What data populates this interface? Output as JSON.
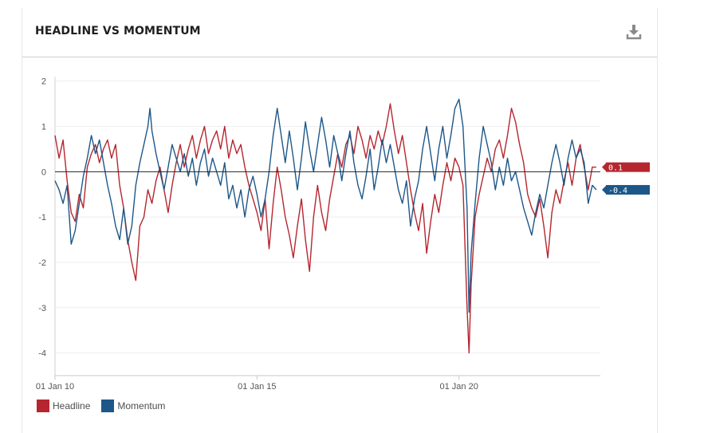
{
  "title": "HEADLINE VS MOMENTUM",
  "download_icon": "download-icon",
  "colors": {
    "headline": "#b5262f",
    "momentum": "#1d5789",
    "zero_line": "#222222",
    "grid": "#eeeeee"
  },
  "chart_data": {
    "type": "line",
    "title": "HEADLINE VS MOMENTUM",
    "xlabel": "",
    "ylabel": "",
    "ylim": [
      -4.5,
      2.1
    ],
    "xlim": [
      2010.0,
      2023.5
    ],
    "y_ticks": [
      2,
      1,
      0,
      -1,
      -2,
      -3,
      -4
    ],
    "y_tick_labels": [
      "2",
      "1",
      "0",
      "-1",
      "-2",
      "-3",
      "-4"
    ],
    "x_ticks": [
      2010,
      2015,
      2020
    ],
    "x_tick_labels": [
      "01 Jan 10",
      "01 Jan 15",
      "01 Jan 20"
    ],
    "grid": true,
    "legend_position": "bottom-left",
    "series": [
      {
        "name": "Headline",
        "color": "#b5262f",
        "last_value_label": "0.1",
        "points": [
          [
            2010.0,
            0.8
          ],
          [
            2010.1,
            0.3
          ],
          [
            2010.2,
            0.7
          ],
          [
            2010.3,
            -0.2
          ],
          [
            2010.4,
            -0.9
          ],
          [
            2010.5,
            -1.1
          ],
          [
            2010.6,
            -0.5
          ],
          [
            2010.7,
            -0.8
          ],
          [
            2010.8,
            0.1
          ],
          [
            2010.9,
            0.4
          ],
          [
            2011.0,
            0.6
          ],
          [
            2011.1,
            0.2
          ],
          [
            2011.2,
            0.5
          ],
          [
            2011.3,
            0.7
          ],
          [
            2011.4,
            0.3
          ],
          [
            2011.5,
            0.6
          ],
          [
            2011.6,
            -0.3
          ],
          [
            2011.7,
            -0.8
          ],
          [
            2011.8,
            -1.5
          ],
          [
            2011.9,
            -2.0
          ],
          [
            2012.0,
            -2.4
          ],
          [
            2012.05,
            -1.8
          ],
          [
            2012.1,
            -1.2
          ],
          [
            2012.2,
            -1.0
          ],
          [
            2012.3,
            -0.4
          ],
          [
            2012.4,
            -0.7
          ],
          [
            2012.5,
            -0.2
          ],
          [
            2012.6,
            0.1
          ],
          [
            2012.7,
            -0.4
          ],
          [
            2012.8,
            -0.9
          ],
          [
            2012.9,
            -0.3
          ],
          [
            2013.0,
            0.2
          ],
          [
            2013.1,
            0.6
          ],
          [
            2013.2,
            0.1
          ],
          [
            2013.3,
            0.5
          ],
          [
            2013.4,
            0.8
          ],
          [
            2013.5,
            0.3
          ],
          [
            2013.6,
            0.7
          ],
          [
            2013.7,
            1.0
          ],
          [
            2013.8,
            0.4
          ],
          [
            2013.9,
            0.7
          ],
          [
            2014.0,
            0.9
          ],
          [
            2014.1,
            0.5
          ],
          [
            2014.2,
            1.0
          ],
          [
            2014.3,
            0.3
          ],
          [
            2014.4,
            0.7
          ],
          [
            2014.5,
            0.4
          ],
          [
            2014.6,
            0.6
          ],
          [
            2014.7,
            0.1
          ],
          [
            2014.8,
            -0.3
          ],
          [
            2014.9,
            -0.6
          ],
          [
            2015.0,
            -0.9
          ],
          [
            2015.1,
            -1.3
          ],
          [
            2015.2,
            -0.6
          ],
          [
            2015.3,
            -1.7
          ],
          [
            2015.4,
            -0.7
          ],
          [
            2015.5,
            0.1
          ],
          [
            2015.6,
            -0.4
          ],
          [
            2015.7,
            -1.0
          ],
          [
            2015.8,
            -1.4
          ],
          [
            2015.9,
            -1.9
          ],
          [
            2016.0,
            -1.2
          ],
          [
            2016.1,
            -0.6
          ],
          [
            2016.2,
            -1.5
          ],
          [
            2016.3,
            -2.2
          ],
          [
            2016.4,
            -1.0
          ],
          [
            2016.5,
            -0.3
          ],
          [
            2016.6,
            -0.9
          ],
          [
            2016.7,
            -1.3
          ],
          [
            2016.8,
            -0.6
          ],
          [
            2016.9,
            -0.1
          ],
          [
            2017.0,
            0.4
          ],
          [
            2017.1,
            0.1
          ],
          [
            2017.2,
            0.6
          ],
          [
            2017.3,
            0.8
          ],
          [
            2017.4,
            0.4
          ],
          [
            2017.5,
            1.0
          ],
          [
            2017.6,
            0.7
          ],
          [
            2017.7,
            0.3
          ],
          [
            2017.8,
            0.8
          ],
          [
            2017.9,
            0.5
          ],
          [
            2018.0,
            0.9
          ],
          [
            2018.1,
            0.6
          ],
          [
            2018.2,
            1.0
          ],
          [
            2018.3,
            1.5
          ],
          [
            2018.4,
            0.9
          ],
          [
            2018.5,
            0.4
          ],
          [
            2018.6,
            0.8
          ],
          [
            2018.7,
            0.2
          ],
          [
            2018.8,
            -0.4
          ],
          [
            2018.9,
            -0.9
          ],
          [
            2019.0,
            -1.3
          ],
          [
            2019.1,
            -0.7
          ],
          [
            2019.2,
            -1.8
          ],
          [
            2019.3,
            -1.1
          ],
          [
            2019.4,
            -0.5
          ],
          [
            2019.5,
            -0.9
          ],
          [
            2019.6,
            -0.3
          ],
          [
            2019.7,
            0.2
          ],
          [
            2019.8,
            -0.2
          ],
          [
            2019.9,
            0.3
          ],
          [
            2020.0,
            0.1
          ],
          [
            2020.1,
            -0.3
          ],
          [
            2020.2,
            -3.0
          ],
          [
            2020.25,
            -4.0
          ],
          [
            2020.3,
            -2.5
          ],
          [
            2020.4,
            -1.0
          ],
          [
            2020.5,
            -0.5
          ],
          [
            2020.6,
            -0.1
          ],
          [
            2020.7,
            0.3
          ],
          [
            2020.8,
            0.0
          ],
          [
            2020.9,
            0.5
          ],
          [
            2021.0,
            0.7
          ],
          [
            2021.1,
            0.3
          ],
          [
            2021.2,
            0.8
          ],
          [
            2021.3,
            1.4
          ],
          [
            2021.4,
            1.1
          ],
          [
            2021.5,
            0.6
          ],
          [
            2021.6,
            0.2
          ],
          [
            2021.7,
            -0.5
          ],
          [
            2021.8,
            -0.8
          ],
          [
            2021.9,
            -1.0
          ],
          [
            2022.0,
            -0.6
          ],
          [
            2022.1,
            -1.2
          ],
          [
            2022.2,
            -1.9
          ],
          [
            2022.3,
            -0.9
          ],
          [
            2022.4,
            -0.4
          ],
          [
            2022.5,
            -0.7
          ],
          [
            2022.6,
            -0.2
          ],
          [
            2022.7,
            0.2
          ],
          [
            2022.8,
            -0.3
          ],
          [
            2022.9,
            0.3
          ],
          [
            2023.0,
            0.6
          ],
          [
            2023.1,
            0.1
          ],
          [
            2023.2,
            -0.4
          ],
          [
            2023.3,
            0.1
          ],
          [
            2023.4,
            0.1
          ]
        ]
      },
      {
        "name": "Momentum",
        "color": "#1d5789",
        "last_value_label": "-0.4",
        "points": [
          [
            2010.0,
            -0.2
          ],
          [
            2010.1,
            -0.4
          ],
          [
            2010.2,
            -0.7
          ],
          [
            2010.3,
            -0.3
          ],
          [
            2010.4,
            -1.6
          ],
          [
            2010.5,
            -1.3
          ],
          [
            2010.6,
            -0.7
          ],
          [
            2010.7,
            -0.1
          ],
          [
            2010.8,
            0.3
          ],
          [
            2010.9,
            0.8
          ],
          [
            2011.0,
            0.4
          ],
          [
            2011.1,
            0.7
          ],
          [
            2011.2,
            0.2
          ],
          [
            2011.3,
            -0.3
          ],
          [
            2011.4,
            -0.7
          ],
          [
            2011.5,
            -1.2
          ],
          [
            2011.6,
            -1.5
          ],
          [
            2011.7,
            -0.8
          ],
          [
            2011.8,
            -1.6
          ],
          [
            2011.9,
            -1.2
          ],
          [
            2012.0,
            -0.3
          ],
          [
            2012.1,
            0.2
          ],
          [
            2012.2,
            0.6
          ],
          [
            2012.3,
            1.0
          ],
          [
            2012.35,
            1.4
          ],
          [
            2012.4,
            0.9
          ],
          [
            2012.5,
            0.4
          ],
          [
            2012.6,
            0.0
          ],
          [
            2012.7,
            -0.4
          ],
          [
            2012.8,
            0.1
          ],
          [
            2012.9,
            0.6
          ],
          [
            2013.0,
            0.3
          ],
          [
            2013.1,
            0.0
          ],
          [
            2013.2,
            0.4
          ],
          [
            2013.3,
            -0.1
          ],
          [
            2013.4,
            0.3
          ],
          [
            2013.5,
            -0.3
          ],
          [
            2013.6,
            0.2
          ],
          [
            2013.7,
            0.5
          ],
          [
            2013.8,
            -0.1
          ],
          [
            2013.9,
            0.3
          ],
          [
            2014.0,
            0.0
          ],
          [
            2014.1,
            -0.3
          ],
          [
            2014.2,
            0.2
          ],
          [
            2014.3,
            -0.6
          ],
          [
            2014.4,
            -0.3
          ],
          [
            2014.5,
            -0.8
          ],
          [
            2014.6,
            -0.4
          ],
          [
            2014.7,
            -1.0
          ],
          [
            2014.8,
            -0.4
          ],
          [
            2014.9,
            -0.1
          ],
          [
            2015.0,
            -0.5
          ],
          [
            2015.1,
            -1.0
          ],
          [
            2015.2,
            -0.6
          ],
          [
            2015.3,
            0.0
          ],
          [
            2015.4,
            0.8
          ],
          [
            2015.5,
            1.4
          ],
          [
            2015.6,
            0.8
          ],
          [
            2015.7,
            0.2
          ],
          [
            2015.8,
            0.9
          ],
          [
            2015.9,
            0.3
          ],
          [
            2016.0,
            -0.4
          ],
          [
            2016.1,
            0.3
          ],
          [
            2016.2,
            1.1
          ],
          [
            2016.3,
            0.5
          ],
          [
            2016.4,
            0.0
          ],
          [
            2016.5,
            0.6
          ],
          [
            2016.6,
            1.2
          ],
          [
            2016.7,
            0.7
          ],
          [
            2016.8,
            0.1
          ],
          [
            2016.9,
            0.8
          ],
          [
            2017.0,
            0.4
          ],
          [
            2017.1,
            -0.2
          ],
          [
            2017.2,
            0.4
          ],
          [
            2017.3,
            0.9
          ],
          [
            2017.4,
            0.2
          ],
          [
            2017.5,
            -0.3
          ],
          [
            2017.6,
            -0.6
          ],
          [
            2017.7,
            -0.1
          ],
          [
            2017.8,
            0.5
          ],
          [
            2017.9,
            -0.4
          ],
          [
            2018.0,
            0.1
          ],
          [
            2018.1,
            0.7
          ],
          [
            2018.2,
            0.2
          ],
          [
            2018.3,
            0.6
          ],
          [
            2018.4,
            0.1
          ],
          [
            2018.5,
            -0.4
          ],
          [
            2018.6,
            -0.7
          ],
          [
            2018.7,
            -0.2
          ],
          [
            2018.8,
            -1.2
          ],
          [
            2018.9,
            -0.6
          ],
          [
            2019.0,
            -0.2
          ],
          [
            2019.1,
            0.5
          ],
          [
            2019.2,
            1.0
          ],
          [
            2019.3,
            0.4
          ],
          [
            2019.4,
            -0.2
          ],
          [
            2019.5,
            0.5
          ],
          [
            2019.6,
            1.0
          ],
          [
            2019.7,
            0.3
          ],
          [
            2019.8,
            0.8
          ],
          [
            2019.9,
            1.4
          ],
          [
            2020.0,
            1.6
          ],
          [
            2020.1,
            1.0
          ],
          [
            2020.2,
            -0.8
          ],
          [
            2020.25,
            -3.1
          ],
          [
            2020.3,
            -1.8
          ],
          [
            2020.4,
            -0.7
          ],
          [
            2020.5,
            0.3
          ],
          [
            2020.6,
            1.0
          ],
          [
            2020.7,
            0.6
          ],
          [
            2020.8,
            0.2
          ],
          [
            2020.9,
            -0.4
          ],
          [
            2021.0,
            0.1
          ],
          [
            2021.1,
            -0.3
          ],
          [
            2021.2,
            0.3
          ],
          [
            2021.3,
            -0.2
          ],
          [
            2021.4,
            0.0
          ],
          [
            2021.5,
            -0.4
          ],
          [
            2021.6,
            -0.8
          ],
          [
            2021.7,
            -1.1
          ],
          [
            2021.8,
            -1.4
          ],
          [
            2021.9,
            -0.9
          ],
          [
            2022.0,
            -0.5
          ],
          [
            2022.1,
            -0.8
          ],
          [
            2022.2,
            -0.3
          ],
          [
            2022.3,
            0.2
          ],
          [
            2022.4,
            0.6
          ],
          [
            2022.5,
            0.2
          ],
          [
            2022.6,
            -0.3
          ],
          [
            2022.7,
            0.3
          ],
          [
            2022.8,
            0.7
          ],
          [
            2022.9,
            0.3
          ],
          [
            2023.0,
            0.5
          ],
          [
            2023.1,
            0.2
          ],
          [
            2023.2,
            -0.7
          ],
          [
            2023.3,
            -0.3
          ],
          [
            2023.4,
            -0.4
          ]
        ]
      }
    ]
  },
  "legend": {
    "items": [
      {
        "label": "Headline"
      },
      {
        "label": "Momentum"
      }
    ]
  }
}
